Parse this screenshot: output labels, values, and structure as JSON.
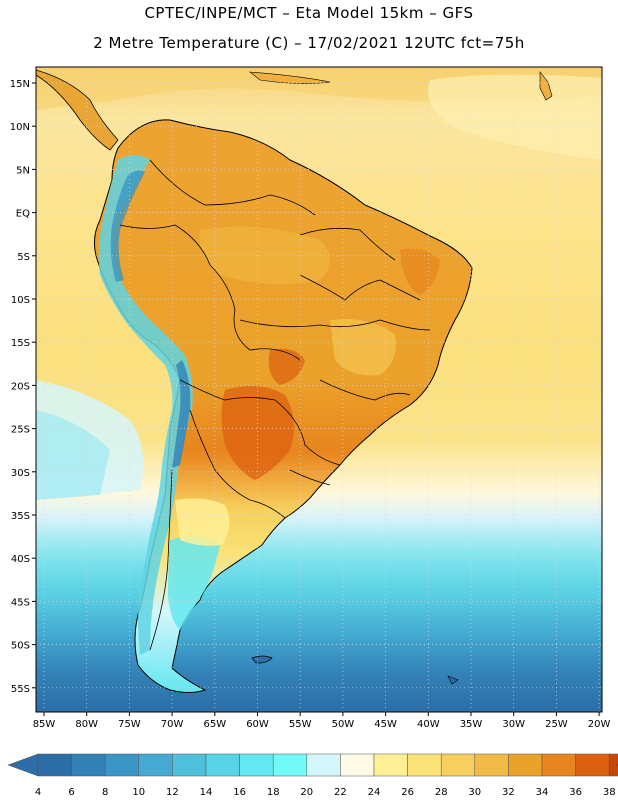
{
  "title_line1": "CPTEC/INPE/MCT –  Eta Model 15km – GFS",
  "title_line2": "2 Metre Temperature (C) – 17/02/2021 12UTC fct=75h",
  "lat_labels": [
    "15N",
    "10N",
    "5N",
    "EQ",
    "5S",
    "10S",
    "15S",
    "20S",
    "25S",
    "30S",
    "35S",
    "40S",
    "45S",
    "50S",
    "55S"
  ],
  "lon_labels": [
    "85W",
    "80W",
    "75W",
    "70W",
    "65W",
    "60W",
    "55W",
    "50W",
    "45W",
    "40W",
    "35W",
    "30W",
    "25W",
    "20W"
  ],
  "colorbar": {
    "ticks": [
      "4",
      "6",
      "8",
      "10",
      "12",
      "14",
      "16",
      "18",
      "20",
      "22",
      "24",
      "26",
      "28",
      "30",
      "32",
      "34",
      "36",
      "38"
    ],
    "colors": [
      "#2d6ea8",
      "#3282b8",
      "#3a96c6",
      "#44aad2",
      "#4fc0dc",
      "#58d4e6",
      "#62e8f0",
      "#72faf8",
      "#d2f6fc",
      "#fffae6",
      "#fff096",
      "#fbe378",
      "#f7cf5e",
      "#f2bb46",
      "#eba22a",
      "#e8851e",
      "#dc6010",
      "#c8460a",
      "#b23c06"
    ]
  },
  "palette": {
    "land_border": "#000000",
    "grid": "#d8d8d8"
  }
}
